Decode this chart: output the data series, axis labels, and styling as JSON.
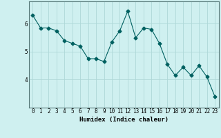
{
  "x": [
    0,
    1,
    2,
    3,
    4,
    5,
    6,
    7,
    8,
    9,
    10,
    11,
    12,
    13,
    14,
    15,
    16,
    17,
    18,
    19,
    20,
    21,
    22,
    23
  ],
  "y": [
    6.3,
    5.85,
    5.85,
    5.75,
    5.4,
    5.3,
    5.2,
    4.75,
    4.75,
    4.65,
    5.35,
    5.75,
    6.45,
    5.5,
    5.85,
    5.8,
    5.3,
    4.55,
    4.15,
    4.45,
    4.15,
    4.5,
    4.1,
    3.4
  ],
  "line_color": "#006060",
  "marker": "D",
  "marker_size": 2.5,
  "bg_color": "#cff0f0",
  "grid_color": "#aed8d8",
  "xlabel": "Humidex (Indice chaleur)",
  "yticks": [
    4,
    5,
    6
  ],
  "xlim": [
    -0.5,
    23.5
  ],
  "ylim": [
    3.0,
    6.8
  ],
  "xlabel_fontsize": 6.5,
  "tick_fontsize": 5.5
}
